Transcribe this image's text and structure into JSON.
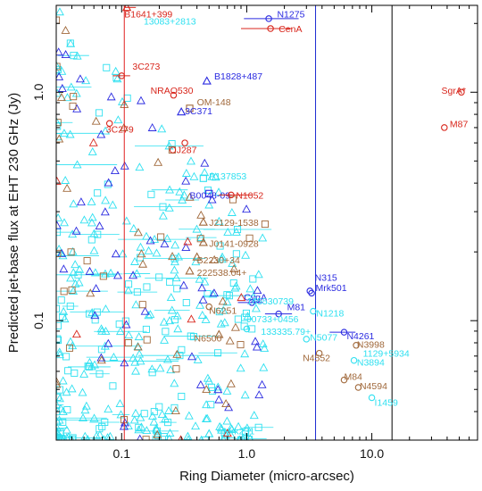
{
  "chart_data": {
    "type": "scatter",
    "xlabel": "Ring Diameter (micro-arcsec)",
    "ylabel": "Predicted jet-base flux at EHT 230 GHz (Jy)",
    "xscale": "log",
    "yscale": "log",
    "xlim": [
      0.03,
      70
    ],
    "ylim": [
      0.03,
      2.4
    ],
    "x_ticks": [
      {
        "value": 0.1,
        "label": "0.1"
      },
      {
        "value": 1.0,
        "label": "1.0"
      },
      {
        "value": 10.0,
        "label": "10.0"
      }
    ],
    "y_ticks": [
      {
        "value": 1.0,
        "label": "1.0"
      },
      {
        "value": 0.1,
        "label": "0.1"
      }
    ],
    "vlines": [
      {
        "x": 0.105,
        "color": "#e02020"
      },
      {
        "x": 3.55,
        "color": "#1a2ad0"
      },
      {
        "x": 14.5,
        "color": "#000000"
      }
    ],
    "colors": {
      "red": "#d8261c",
      "blue": "#2a2ae0",
      "brown": "#a0683a",
      "cyan": "#2ee0f0"
    },
    "labeled_points": [
      {
        "name": "B1641+399",
        "x": 0.11,
        "y": 2.35,
        "color": "red",
        "marker": "triangle",
        "xerr": [
          0.105,
          0.13
        ],
        "lx": 0.105,
        "ly": 2.2
      },
      {
        "name": "N1275",
        "x": 1.5,
        "y": 2.1,
        "color": "blue",
        "marker": "circle",
        "xerr": [
          0.95,
          2.6
        ],
        "lx": 1.75,
        "ly": 2.2
      },
      {
        "name": "CenA",
        "x": 1.55,
        "y": 1.9,
        "color": "red",
        "marker": "circle",
        "xerr": [
          0.9,
          2.3
        ],
        "lx": 1.8,
        "ly": 1.9
      },
      {
        "name": "3C273",
        "x": 0.1,
        "y": 1.18,
        "color": "red",
        "marker": "circle",
        "xerr": [
          0.085,
          0.117
        ],
        "lx": 0.122,
        "ly": 1.3
      },
      {
        "name": "B1828+487",
        "x": 0.48,
        "y": 1.12,
        "color": "blue",
        "marker": "triangle",
        "lx": 0.55,
        "ly": 1.18
      },
      {
        "name": "NRAO530",
        "x": 0.26,
        "y": 0.97,
        "color": "red",
        "marker": "circle",
        "lx": 0.17,
        "ly": 1.02
      },
      {
        "name": "OM-148",
        "x": 0.35,
        "y": 0.85,
        "color": "brown",
        "marker": "square",
        "lx": 0.4,
        "ly": 0.91
      },
      {
        "name": "3C371",
        "x": 0.3,
        "y": 0.82,
        "color": "blue",
        "marker": "triangle",
        "lx": 0.32,
        "ly": 0.83
      },
      {
        "name": "3C279",
        "x": 0.08,
        "y": 0.73,
        "color": "red",
        "marker": "circle",
        "lx": 0.075,
        "ly": 0.69
      },
      {
        "name": "OJ287",
        "x": 0.32,
        "y": 0.6,
        "color": "red",
        "marker": "circle",
        "lx": 0.24,
        "ly": 0.56
      },
      {
        "name": "P137853",
        "x": 0.45,
        "y": 0.42,
        "color": "cyan",
        "marker": "square",
        "lx": 0.5,
        "ly": 0.43
      },
      {
        "name": "B0048-09",
        "x": 0.5,
        "y": 0.36,
        "color": "blue",
        "marker": "square",
        "lx": 0.35,
        "ly": 0.355
      },
      {
        "name": "N1052",
        "x": 0.75,
        "y": 0.355,
        "color": "red",
        "marker": "circle",
        "xerr": [
          0.6,
          1.1
        ],
        "lx": 0.82,
        "ly": 0.355
      },
      {
        "name": "J2129-1538",
        "x": 0.45,
        "y": 0.27,
        "color": "brown",
        "marker": "triangle",
        "lx": 0.5,
        "ly": 0.27
      },
      {
        "name": "J0141-0928",
        "x": 0.45,
        "y": 0.22,
        "color": "brown",
        "marker": "triangle",
        "lx": 0.5,
        "ly": 0.218
      },
      {
        "name": "B2230+34",
        "x": 0.4,
        "y": 0.19,
        "color": "brown",
        "marker": "triangle",
        "lx": 0.4,
        "ly": 0.185
      },
      {
        "name": "222538.04+",
        "x": 0.35,
        "y": 0.165,
        "color": "brown",
        "marker": "triangle",
        "lx": 0.4,
        "ly": 0.163
      },
      {
        "name": "N315",
        "x": 3.2,
        "y": 0.135,
        "color": "blue",
        "marker": "circle",
        "lx": 3.5,
        "ly": 0.155
      },
      {
        "name": "Mrk501",
        "x": 3.3,
        "y": 0.132,
        "color": "blue",
        "marker": "circle",
        "lx": 3.55,
        "ly": 0.14
      },
      {
        "name": "CygA",
        "x": 1.1,
        "y": 0.12,
        "color": "blue",
        "marker": "circle",
        "xerr": [
          0.85,
          1.35
        ],
        "lx": 0.95,
        "ly": 0.127
      },
      {
        "name": "N6251",
        "x": 0.5,
        "y": 0.115,
        "color": "brown",
        "marker": "circle",
        "lx": 0.5,
        "ly": 0.111
      },
      {
        "name": "M81",
        "x": 1.8,
        "y": 0.107,
        "color": "blue",
        "marker": "circle",
        "xerr": [
          1.4,
          2.3
        ],
        "lx": 2.1,
        "ly": 0.115
      },
      {
        "name": "N1218",
        "x": 3.4,
        "y": 0.11,
        "color": "cyan",
        "marker": "circle",
        "lx": 3.6,
        "ly": 0.108
      },
      {
        "name": "N6500",
        "x": 0.6,
        "y": 0.087,
        "color": "brown",
        "marker": "triangle",
        "lx": 0.38,
        "ly": 0.084
      },
      {
        "name": "133335.79+",
        "x": 1.0,
        "y": 0.092,
        "color": "cyan",
        "marker": "circle",
        "lx": 1.3,
        "ly": 0.09
      },
      {
        "name": "N4261",
        "x": 6.0,
        "y": 0.089,
        "color": "blue",
        "marker": "circle",
        "xerr": [
          4.6,
          7.4
        ],
        "lx": 6.3,
        "ly": 0.086
      },
      {
        "name": "N5077",
        "x": 3.0,
        "y": 0.083,
        "color": "cyan",
        "marker": "circle",
        "lx": 3.2,
        "ly": 0.085
      },
      {
        "name": "N3998",
        "x": 7.5,
        "y": 0.078,
        "color": "brown",
        "marker": "circle",
        "lx": 7.6,
        "ly": 0.079
      },
      {
        "name": "N4552",
        "x": 3.8,
        "y": 0.072,
        "color": "brown",
        "marker": "circle",
        "lx": 2.8,
        "ly": 0.069
      },
      {
        "name": "N3894",
        "x": 7.2,
        "y": 0.067,
        "color": "cyan",
        "marker": "circle",
        "lx": 7.6,
        "ly": 0.066
      },
      {
        "name": "M84",
        "x": 6.0,
        "y": 0.055,
        "color": "brown",
        "marker": "circle",
        "lx": 6.0,
        "ly": 0.057
      },
      {
        "name": "N4594",
        "x": 7.8,
        "y": 0.051,
        "color": "brown",
        "marker": "circle",
        "lx": 8.0,
        "ly": 0.052
      },
      {
        "name": "I1459",
        "x": 10.0,
        "y": 0.046,
        "color": "cyan",
        "marker": "circle",
        "lx": 10.5,
        "ly": 0.044
      },
      {
        "name": "Mrk231",
        "x": 0.5,
        "y": 0.032,
        "color": "cyan",
        "marker": "triangle",
        "lx": 0.65,
        "ly": 0.033
      },
      {
        "name": "SgrA*",
        "x": 52,
        "y": 1.0,
        "color": "red",
        "marker": "circle",
        "lx": 36,
        "ly": 1.02
      },
      {
        "name": "M87",
        "x": 38,
        "y": 0.7,
        "color": "red",
        "marker": "circle",
        "lx": 42,
        "ly": 0.73
      }
    ],
    "faint_labels": [
      {
        "text": "13083+2813",
        "x": 0.15,
        "y": 2.05,
        "color": "cyan"
      },
      {
        "text": "165530739",
        "x": 1.0,
        "y": 0.122,
        "color": "cyan"
      },
      {
        "text": "J0733+0456",
        "x": 1.0,
        "y": 0.102,
        "color": "cyan"
      },
      {
        "text": "1129+5934",
        "x": 8.5,
        "y": 0.072,
        "color": "cyan"
      }
    ],
    "background_scatter": {
      "series": [
        {
          "color": "cyan",
          "marker": "triangle",
          "count": 240
        },
        {
          "color": "cyan",
          "marker": "square",
          "count": 110
        },
        {
          "color": "blue",
          "marker": "triangle",
          "count": 55
        },
        {
          "color": "brown",
          "marker": "triangle",
          "count": 30
        },
        {
          "color": "brown",
          "marker": "square",
          "count": 25
        },
        {
          "color": "red",
          "marker": "triangle",
          "count": 8
        }
      ]
    }
  }
}
